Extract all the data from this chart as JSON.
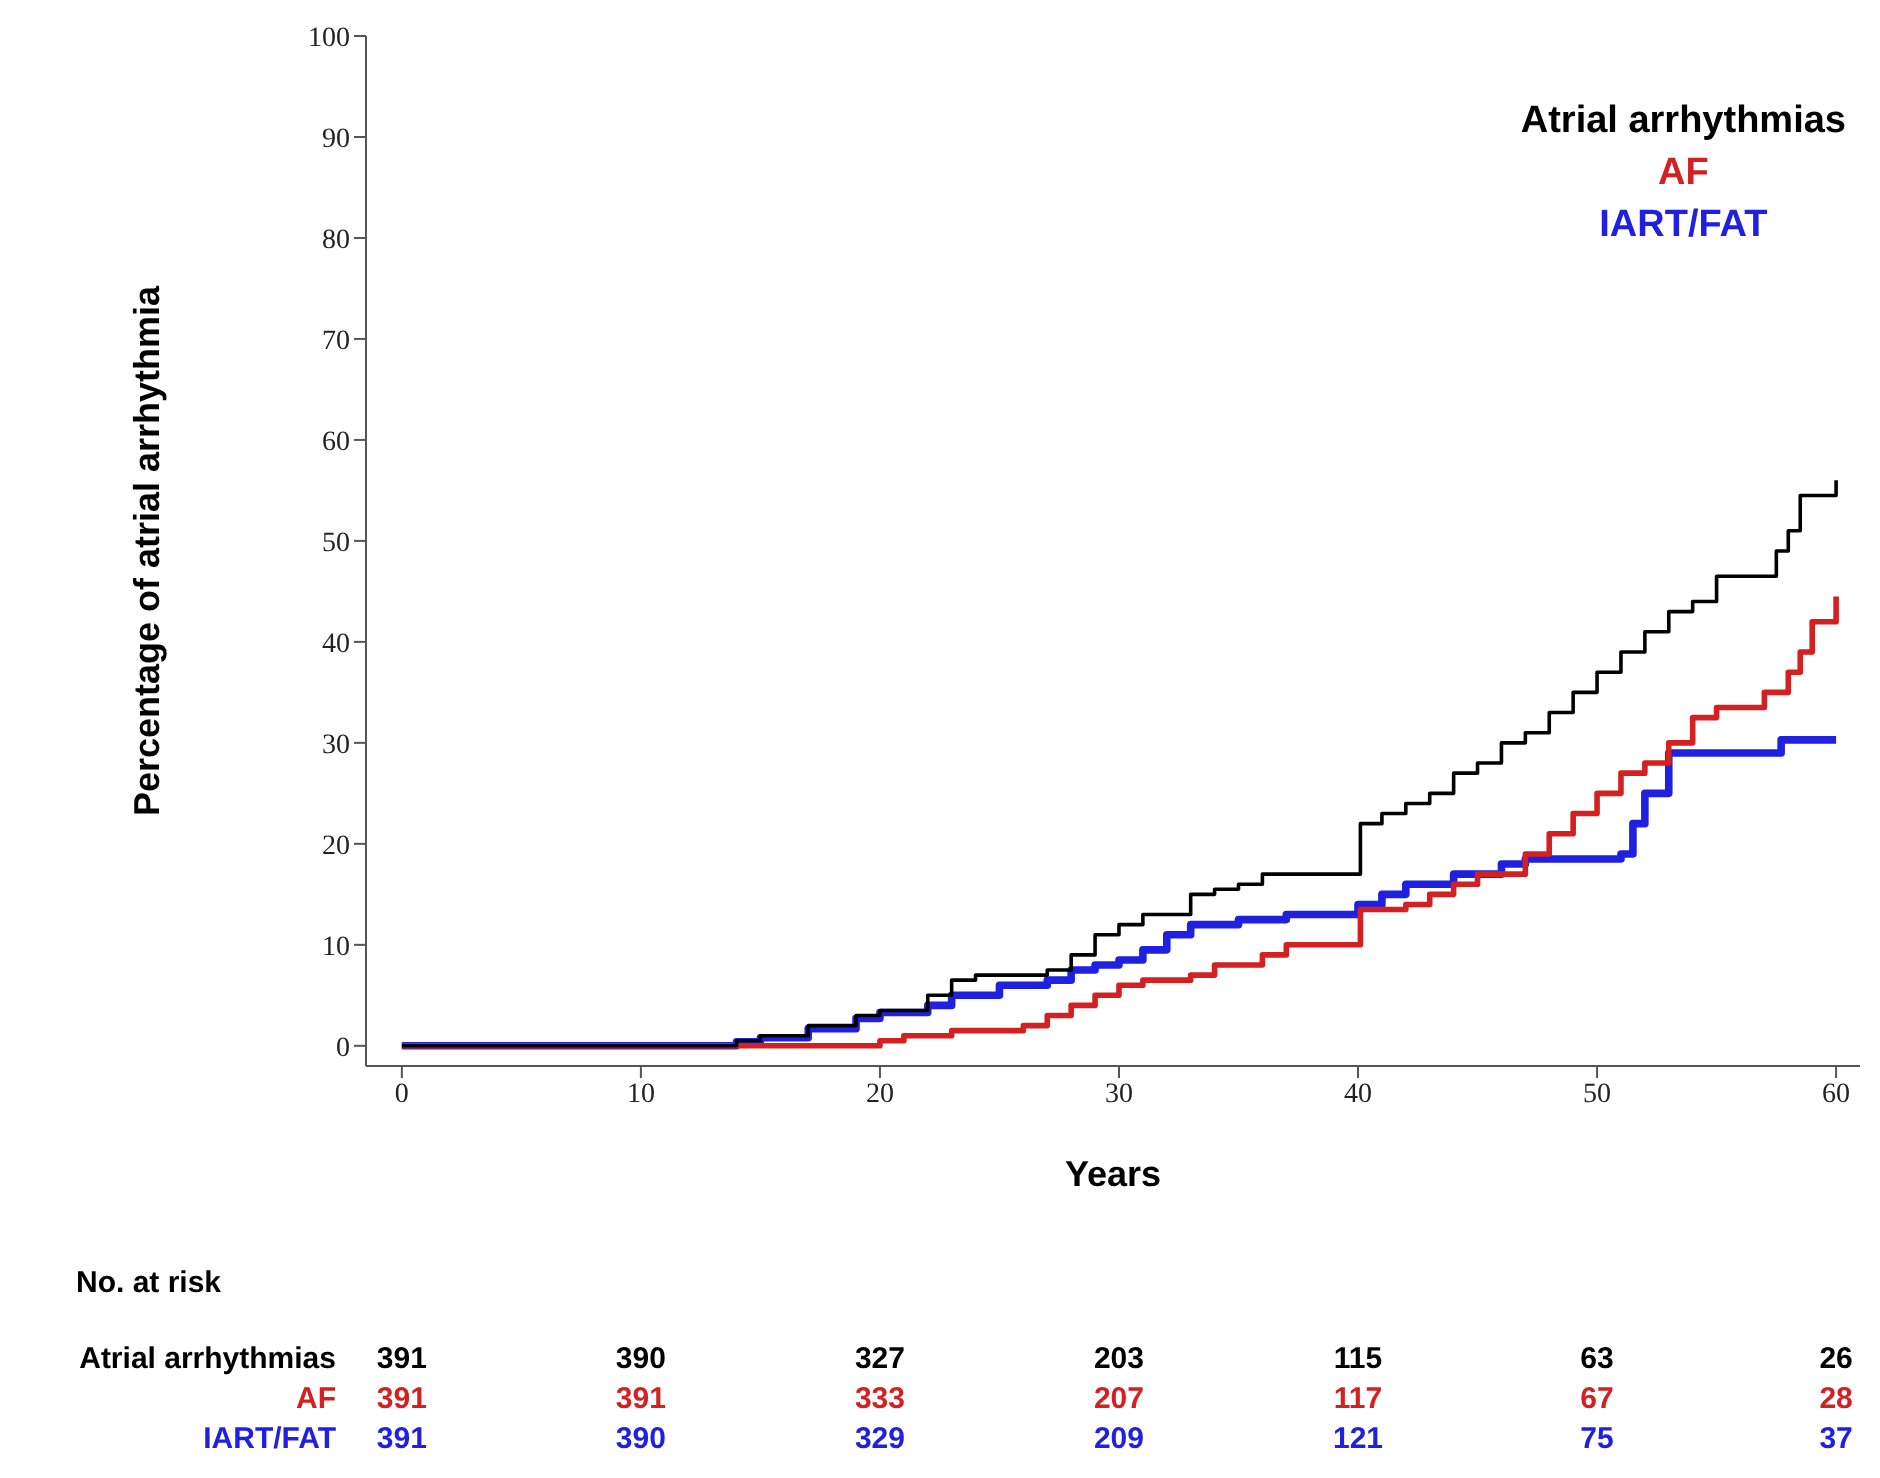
{
  "chart_data": {
    "type": "step",
    "xlabel": "Years",
    "ylabel": "Percentage of atrial arrhythmia",
    "xlim": [
      -1.5,
      61
    ],
    "ylim": [
      -2,
      100
    ],
    "xticks": [
      0,
      10,
      20,
      30,
      40,
      50,
      60
    ],
    "yticks": [
      0,
      10,
      20,
      30,
      40,
      50,
      60,
      70,
      80,
      90,
      100
    ],
    "legend": "top right",
    "series": [
      {
        "name": "Atrial arrhythmias",
        "color": "#000000",
        "x": [
          0,
          13,
          14,
          15,
          17,
          19,
          20,
          22,
          23,
          24,
          27,
          28,
          29,
          30,
          31,
          33,
          34,
          35,
          36,
          40,
          40.1,
          41,
          42,
          43,
          44,
          45,
          46,
          47,
          48,
          49,
          50,
          51,
          52,
          53,
          54,
          55,
          57,
          57.5,
          58,
          58.5,
          59.8,
          60
        ],
        "values": [
          0,
          0,
          0.5,
          1,
          2,
          3,
          3.5,
          5,
          6.5,
          7,
          7.5,
          9,
          11,
          12,
          13,
          15,
          15.5,
          16,
          17,
          17,
          22,
          23,
          24,
          25,
          27,
          28,
          30,
          31,
          33,
          35,
          37,
          39,
          41,
          43,
          44,
          46.5,
          46.5,
          49,
          51,
          54.5,
          54.5,
          56
        ]
      },
      {
        "name": "AF",
        "color": "#d42020",
        "x": [
          0,
          20,
          21,
          23,
          26,
          27,
          28,
          29,
          30,
          31,
          33,
          34,
          36,
          37,
          40,
          40.1,
          42,
          43,
          44,
          45,
          47,
          48,
          49,
          50,
          51,
          52,
          53,
          54,
          55,
          57,
          58,
          58.5,
          59,
          60
        ],
        "values": [
          0,
          0.5,
          1,
          1.5,
          2,
          3,
          4,
          5,
          6,
          6.5,
          7,
          8,
          9,
          10,
          10,
          13.5,
          14,
          15,
          16,
          17,
          19,
          21,
          23,
          25,
          27,
          28,
          30,
          32.5,
          33.5,
          35,
          37,
          39,
          42,
          44.5
        ]
      },
      {
        "name": "IART/FAT",
        "color": "#2020e0",
        "x": [
          0,
          14,
          15,
          17,
          19,
          20,
          22,
          23,
          25,
          27,
          28,
          29,
          30,
          31,
          32,
          33,
          35,
          37,
          40,
          41,
          42,
          44,
          46,
          47,
          51,
          51.5,
          52,
          53,
          57.5,
          57.7,
          60
        ],
        "values": [
          0,
          0.4,
          0.8,
          1.7,
          2.7,
          3.3,
          4,
          5,
          6,
          6.5,
          7.5,
          8,
          8.5,
          9.5,
          11,
          12,
          12.5,
          13,
          14,
          15,
          16,
          17,
          18,
          18.5,
          19,
          22,
          25,
          29,
          29,
          30.3,
          30.3
        ]
      }
    ],
    "annotations": [
      "No. at risk",
      "Atrial arrhythmias",
      "391",
      "390",
      "327",
      "203",
      "115",
      "63",
      "26",
      "AF",
      "391",
      "391",
      "333",
      "207",
      "117",
      "67",
      "28",
      "IART/FAT",
      "391",
      "390",
      "329",
      "209",
      "121",
      "75",
      "37"
    ]
  }
}
